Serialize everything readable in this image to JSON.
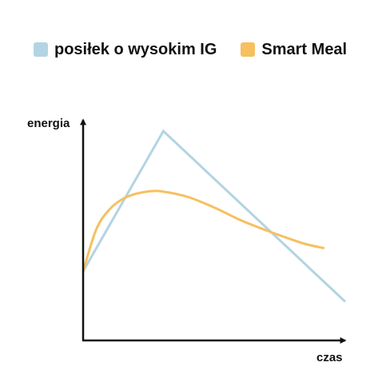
{
  "chart_data": {
    "type": "line",
    "xlabel": "czas",
    "ylabel": "energia",
    "grid": false,
    "legend_position": "top",
    "ticks": false,
    "xlim": [
      0,
      10
    ],
    "ylim": [
      0,
      10
    ],
    "series": [
      {
        "name": "posiłek o wysokim IG",
        "color": "#b3d4e2",
        "shape": "straight",
        "points": [
          [
            0,
            3.3
          ],
          [
            3.06,
            10
          ],
          [
            10,
            1.85
          ]
        ]
      },
      {
        "name": "Smart Meal",
        "color": "#f6c05f",
        "shape": "smooth",
        "points": [
          [
            0,
            3.3
          ],
          [
            0.5,
            5.3
          ],
          [
            1.0,
            6.25
          ],
          [
            1.5,
            6.75
          ],
          [
            2.0,
            7.0
          ],
          [
            2.5,
            7.12
          ],
          [
            3.0,
            7.12
          ],
          [
            4.0,
            6.85
          ],
          [
            5.0,
            6.35
          ],
          [
            6.0,
            5.75
          ],
          [
            7.0,
            5.25
          ],
          [
            8.0,
            4.8
          ],
          [
            8.5,
            4.6
          ],
          [
            9.2,
            4.4
          ]
        ]
      }
    ]
  }
}
